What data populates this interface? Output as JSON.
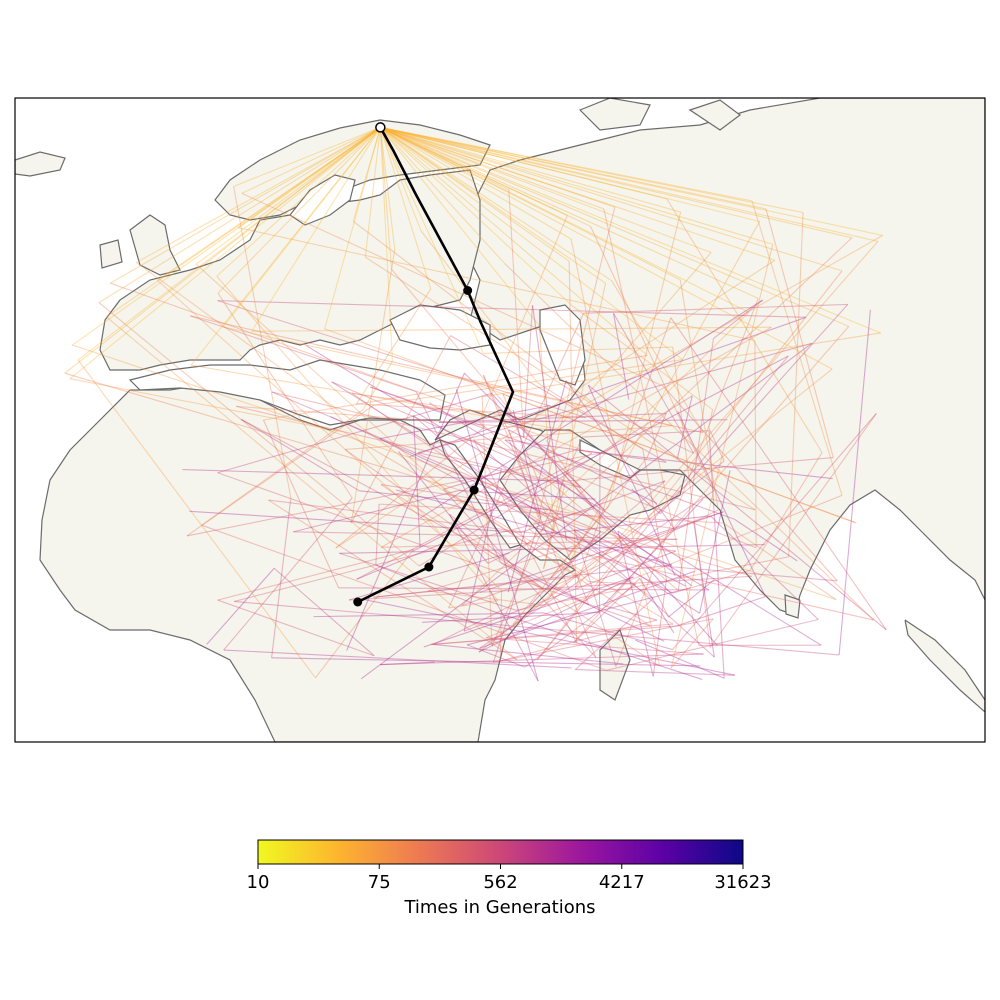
{
  "colorbar": {
    "label": "Times in Generations",
    "ticks": [
      "10",
      "75",
      "562",
      "4217",
      "31623"
    ],
    "min": 10,
    "max": 31623,
    "scale": "log",
    "colormap": "plasma",
    "colors": [
      "#f0f921",
      "#fdb42f",
      "#ed7953",
      "#cc4778",
      "#9c179e",
      "#5c01a6",
      "#0d0887"
    ]
  },
  "map": {
    "land_color": "#f5f5ed",
    "coast_color": "#6b6b6b",
    "extent_lon": [
      -20,
      130
    ],
    "extent_lat": [
      -20,
      72
    ],
    "sample": {
      "lon": 36.5,
      "lat": 67.8
    },
    "ancestor_path": [
      {
        "lon": 36.5,
        "lat": 67.8
      },
      {
        "lon": 38.5,
        "lat": 64.5
      },
      {
        "lon": 42.0,
        "lat": 58.2
      },
      {
        "lon": 50.0,
        "lat": 44.5
      },
      {
        "lon": 52.0,
        "lat": 40.0
      },
      {
        "lon": 57.0,
        "lat": 30.0
      },
      {
        "lon": 51.0,
        "lat": 16.0
      },
      {
        "lon": 44.0,
        "lat": 5.0
      },
      {
        "lon": 33.0,
        "lat": 0.0
      }
    ],
    "ancestor_points": [
      {
        "lon": 50.0,
        "lat": 44.5
      },
      {
        "lon": 51.0,
        "lat": 16.0
      },
      {
        "lon": 44.0,
        "lat": 5.0
      },
      {
        "lon": 33.0,
        "lat": 0.0
      }
    ],
    "trace_seed": 7,
    "trace_count": 60
  }
}
